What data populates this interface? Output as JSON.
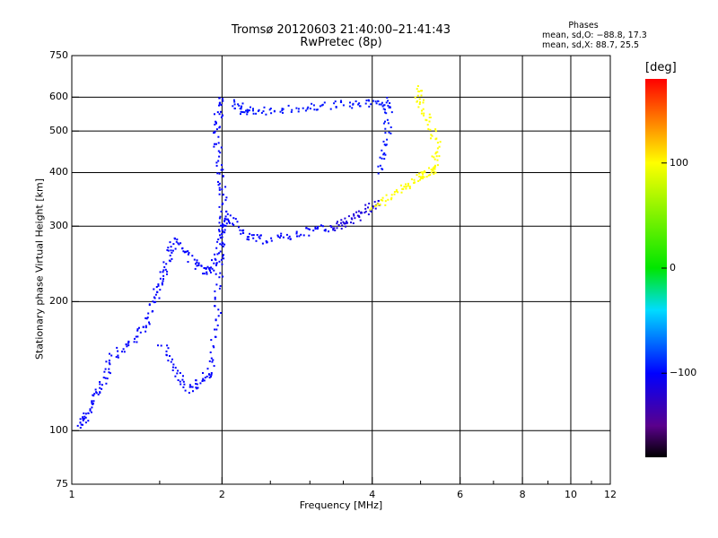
{
  "title": "Tromsø 20120603 21:40:00–21:41:43",
  "subtitle": "RwPretec (8p)",
  "phases_block": {
    "heading": "Phases",
    "line1": "mean, sd,O: −88.8, 17.3",
    "line2": "mean, sd,X:  88.7, 25.5"
  },
  "colorbar": {
    "unit_label": "[deg]",
    "ticks": [
      "100",
      "0",
      "−100"
    ],
    "range": [
      -180,
      180
    ]
  },
  "chart_data": {
    "type": "scatter",
    "title": "Tromsø 20120603 21:40:00–21:41:43",
    "subtitle": "RwPretec (8p)",
    "xlabel": "Frequency [MHz]",
    "ylabel": "Stationary phase Virtual Height [km]",
    "xscale": "log",
    "yscale": "log",
    "xlim": [
      1,
      12
    ],
    "ylim": [
      75,
      750
    ],
    "xticks": [
      1,
      2,
      4,
      6,
      8,
      10,
      12
    ],
    "xtick_labels": [
      "1",
      "2",
      "4",
      "6",
      "8",
      "10",
      "12"
    ],
    "yticks": [
      75,
      100,
      200,
      300,
      400,
      500,
      600,
      750
    ],
    "ytick_labels": [
      "75",
      "100",
      "200",
      "300",
      "400",
      "500",
      "600",
      "750"
    ],
    "grid": true,
    "color_variable": "phase [deg]",
    "series": [
      {
        "phase": -100,
        "points": [
          [
            1.03,
            104
          ],
          [
            1.06,
            108
          ],
          [
            1.1,
            118
          ],
          [
            1.15,
            130
          ],
          [
            1.2,
            150
          ],
          [
            1.3,
            160
          ],
          [
            1.4,
            175
          ],
          [
            1.45,
            200
          ],
          [
            1.5,
            225
          ],
          [
            1.55,
            250
          ],
          [
            1.6,
            280
          ],
          [
            1.7,
            260
          ],
          [
            1.8,
            240
          ],
          [
            1.9,
            235
          ],
          [
            1.97,
            260
          ],
          [
            2.0,
            300
          ],
          [
            2.05,
            320
          ],
          [
            2.2,
            285
          ],
          [
            2.4,
            280
          ],
          [
            2.7,
            285
          ],
          [
            3.0,
            295
          ],
          [
            3.3,
            300
          ]
        ]
      },
      {
        "phase": -100,
        "points": [
          [
            1.5,
            160
          ],
          [
            1.6,
            140
          ],
          [
            1.7,
            125
          ],
          [
            1.8,
            130
          ],
          [
            1.9,
            140
          ],
          [
            1.95,
            180
          ],
          [
            1.97,
            230
          ],
          [
            2.0,
            290
          ],
          [
            2.0,
            350
          ],
          [
            1.97,
            400
          ],
          [
            1.95,
            480
          ],
          [
            1.96,
            550
          ],
          [
            1.97,
            600
          ]
        ]
      },
      {
        "phase": -95,
        "points": [
          [
            2.1,
            590
          ],
          [
            2.2,
            560
          ],
          [
            2.3,
            560
          ],
          [
            2.6,
            560
          ],
          [
            3.0,
            570
          ],
          [
            3.4,
            580
          ],
          [
            3.8,
            580
          ],
          [
            4.2,
            590
          ],
          [
            4.3,
            560
          ],
          [
            4.25,
            470
          ],
          [
            4.1,
            400
          ]
        ]
      },
      {
        "phase": -115,
        "points": [
          [
            3.3,
            300
          ],
          [
            3.5,
            305
          ],
          [
            3.7,
            315
          ],
          [
            3.9,
            330
          ],
          [
            4.1,
            345
          ]
        ]
      },
      {
        "phase": 100,
        "points": [
          [
            4.0,
            330
          ],
          [
            4.3,
            350
          ],
          [
            4.6,
            370
          ],
          [
            4.9,
            390
          ],
          [
            5.1,
            400
          ],
          [
            5.3,
            410
          ],
          [
            5.4,
            450
          ],
          [
            5.2,
            520
          ],
          [
            5.0,
            580
          ],
          [
            4.9,
            630
          ]
        ]
      }
    ]
  },
  "colors": {
    "grid": "#000000",
    "background": "#ffffff"
  }
}
